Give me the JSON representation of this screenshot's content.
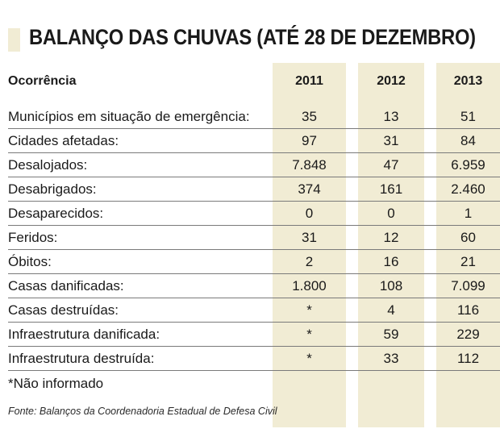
{
  "title": "BALANÇO DAS CHUVAS (ATÉ 28 DE DEZEMBRO)",
  "table": {
    "header_label": "Ocorrência",
    "years": [
      "2011",
      "2012",
      "2013"
    ],
    "rows": [
      {
        "label": "Municípios em situação de emergência:",
        "v2011": "35",
        "v2012": "13",
        "v2013": "51"
      },
      {
        "label": "Cidades afetadas:",
        "v2011": "97",
        "v2012": "31",
        "v2013": "84"
      },
      {
        "label": "Desalojados:",
        "v2011": "7.848",
        "v2012": "47",
        "v2013": "6.959"
      },
      {
        "label": "Desabrigados:",
        "v2011": "374",
        "v2012": "161",
        "v2013": "2.460"
      },
      {
        "label": "Desaparecidos:",
        "v2011": "0",
        "v2012": "0",
        "v2013": "1"
      },
      {
        "label": "Feridos:",
        "v2011": "31",
        "v2012": "12",
        "v2013": "60"
      },
      {
        "label": "Óbitos:",
        "v2011": "2",
        "v2012": "16",
        "v2013": "21"
      },
      {
        "label": "Casas danificadas:",
        "v2011": "1.800",
        "v2012": "108",
        "v2013": "7.099"
      },
      {
        "label": "Casas destruídas:",
        "v2011": "*",
        "v2012": "4",
        "v2013": "116"
      },
      {
        "label": "Infraestrutura danificada:",
        "v2011": "*",
        "v2012": "59",
        "v2013": "229"
      },
      {
        "label": "Infraestrutura destruída:",
        "v2011": "*",
        "v2012": "33",
        "v2013": "112"
      }
    ]
  },
  "footnote": "*Não informado",
  "source": "Fonte: Balanços da Coordenadoria Estadual de Defesa Civil",
  "colors": {
    "column_band": "#f1ecd4",
    "text": "#1a1a1a",
    "rule": "#7a7a7a"
  }
}
